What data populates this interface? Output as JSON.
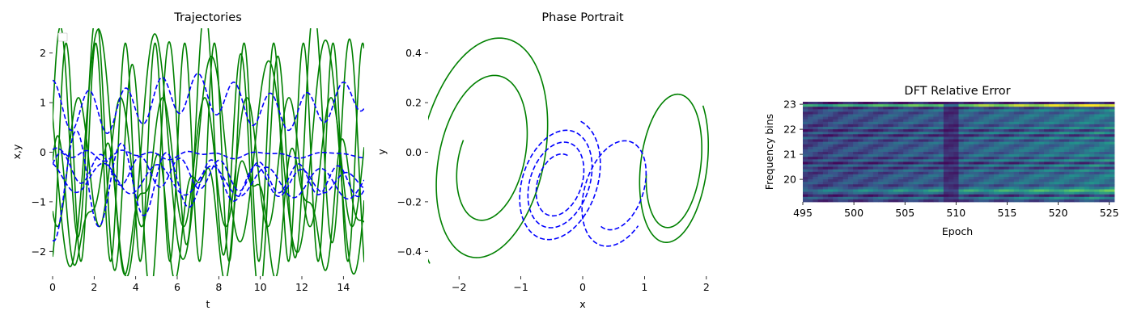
{
  "chart_data": [
    {
      "type": "line",
      "title": "Trajectories",
      "xlabel": "t",
      "ylabel": "x,y",
      "xlim": [
        0,
        15
      ],
      "ylim": [
        -2.5,
        2.5
      ],
      "xticks": [
        "0",
        "2",
        "4",
        "6",
        "8",
        "10",
        "12",
        "14"
      ],
      "yticks": [
        "2",
        "1",
        "0",
        "−1",
        "−2"
      ],
      "legend": "empty box, top-left",
      "series": [
        {
          "style": "solid",
          "color": "#008000",
          "description": "true x(t) and y(t) for three trajectories"
        },
        {
          "style": "dashed",
          "color": "#0000ff",
          "description": "predicted x(t) and y(t) for three trajectories"
        }
      ]
    },
    {
      "type": "line",
      "title": "Phase Portrait",
      "xlabel": "x",
      "ylabel": "y",
      "xlim": [
        -2.5,
        2.5
      ],
      "ylim": [
        -0.5,
        0.5
      ],
      "xticks": [
        "−2",
        "−1",
        "0",
        "1",
        "2"
      ],
      "yticks": [
        "0.4",
        "0.2",
        "0.0",
        "−0.2",
        "−0.4"
      ],
      "series": [
        {
          "style": "solid",
          "color": "#008000"
        },
        {
          "style": "dashed",
          "color": "#0000ff"
        }
      ]
    },
    {
      "type": "heatmap",
      "title": "DFT Relative Error",
      "xlabel": "Epoch",
      "ylabel": "Frequency bins",
      "xlim": [
        495,
        525.5
      ],
      "ylim": [
        19.1,
        23.1
      ],
      "xticks": [
        "495",
        "500",
        "505",
        "510",
        "515",
        "520",
        "525"
      ],
      "yticks": [
        "23",
        "22",
        "21",
        "20"
      ],
      "colormap": "viridis"
    }
  ]
}
